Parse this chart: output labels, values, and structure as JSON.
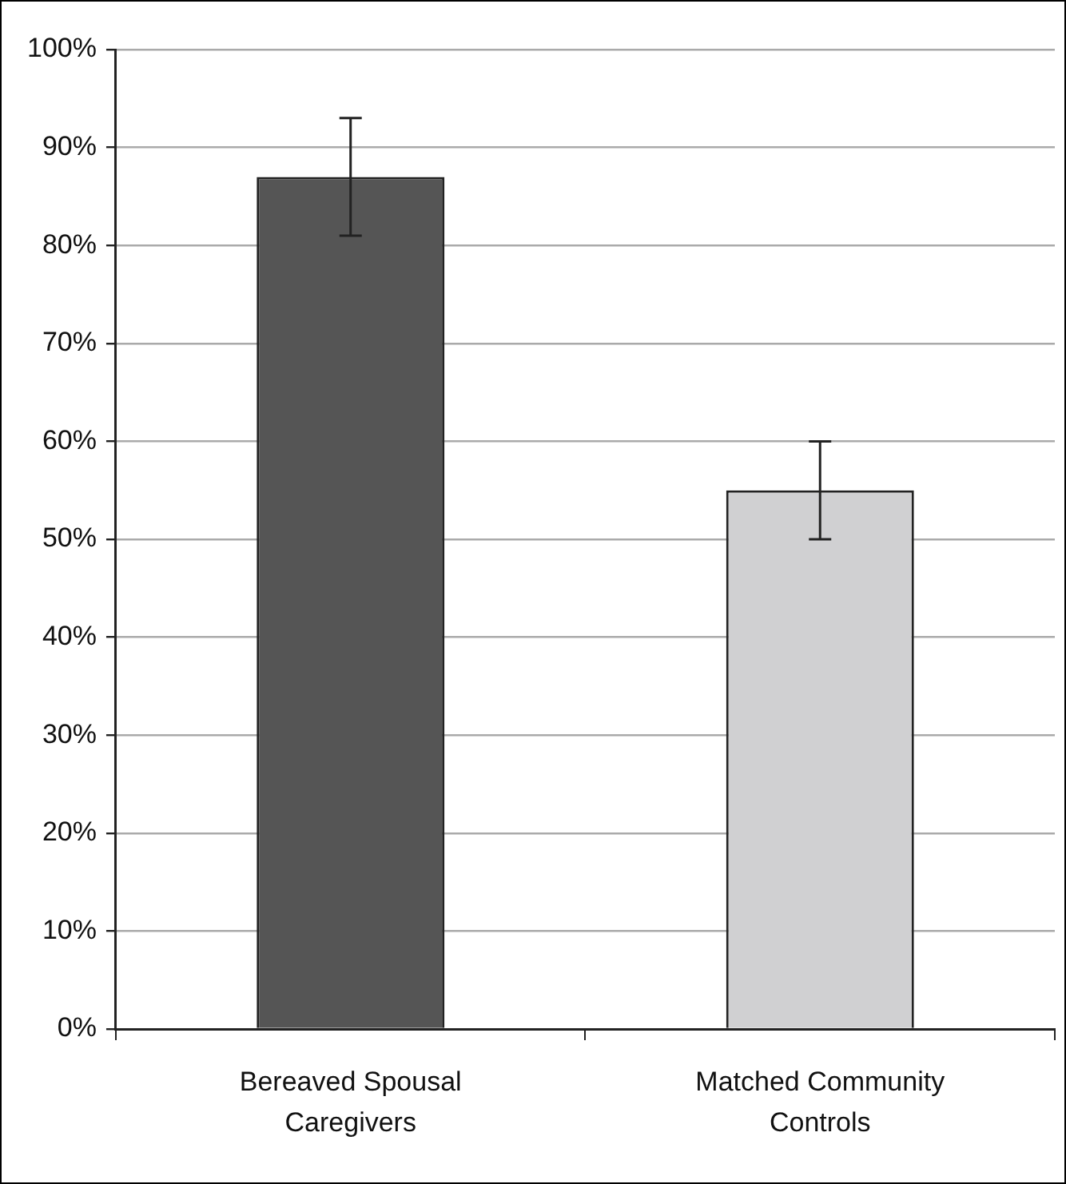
{
  "chart_data": {
    "type": "bar",
    "categories": [
      "Bereaved Spousal Caregivers",
      "Matched Community Controls"
    ],
    "values": [
      87,
      55
    ],
    "errors": [
      6,
      5
    ],
    "colors": [
      "#555555",
      "#d0d0d2"
    ],
    "ylim": [
      0,
      100
    ],
    "yticks": [
      {
        "value": 0,
        "label": "0%"
      },
      {
        "value": 10,
        "label": "10%"
      },
      {
        "value": 20,
        "label": "20%"
      },
      {
        "value": 30,
        "label": "30%"
      },
      {
        "value": 40,
        "label": "40%"
      },
      {
        "value": 50,
        "label": "50%"
      },
      {
        "value": 60,
        "label": "60%"
      },
      {
        "value": 70,
        "label": "70%"
      },
      {
        "value": 80,
        "label": "80%"
      },
      {
        "value": 90,
        "label": "90%"
      },
      {
        "value": 100,
        "label": "100%"
      }
    ],
    "grid": "y",
    "legend": false
  }
}
